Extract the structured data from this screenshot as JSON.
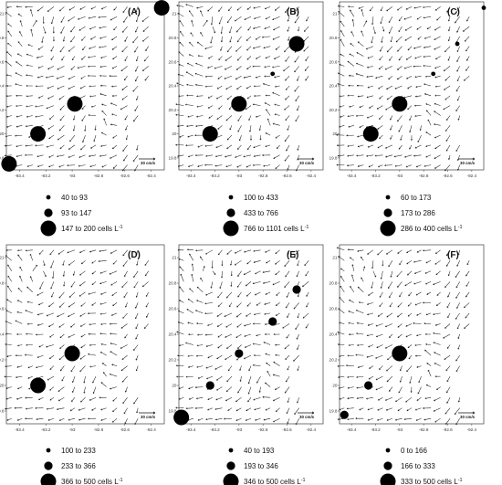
{
  "chart_data": [
    {
      "type": "scatter",
      "panel_label": "(A)",
      "xlim": [
        -93.5,
        -92.3
      ],
      "ylim": [
        19.7,
        21.1
      ],
      "x_ticks": [
        "-93.4",
        "-93.2",
        "-93",
        "-92.8",
        "-92.6",
        "-92.4"
      ],
      "y_ticks": [
        "19.8",
        "20",
        "20.2",
        "20.4",
        "20.6",
        "20.8",
        "21"
      ],
      "current_scale_label": "30 cm/s",
      "legend": [
        {
          "min": "40",
          "max": "93"
        },
        {
          "min": "93",
          "max": "147"
        },
        {
          "min": "147",
          "max": "200",
          "unit": "cells L",
          "unit_exp": "-1"
        }
      ],
      "points": [
        {
          "lon": -92.32,
          "lat": 21.05,
          "class": 3
        },
        {
          "lon": -92.98,
          "lat": 20.25,
          "class": 3
        },
        {
          "lon": -93.26,
          "lat": 20.0,
          "class": 3
        },
        {
          "lon": -93.48,
          "lat": 19.75,
          "class": 3
        }
      ]
    },
    {
      "type": "scatter",
      "panel_label": "(B)",
      "xlim": [
        -93.5,
        -92.3
      ],
      "ylim": [
        19.7,
        21.1
      ],
      "x_ticks": [
        "-93.4",
        "-93.2",
        "-93",
        "-92.8",
        "-92.6",
        "-92.4"
      ],
      "y_ticks": [
        "19.8",
        "20",
        "20.2",
        "20.4",
        "20.6",
        "20.8",
        "21"
      ],
      "current_scale_label": "30 cm/s",
      "legend": [
        {
          "min": "100",
          "max": "433"
        },
        {
          "min": "433",
          "max": "766"
        },
        {
          "min": "766",
          "max": "1101",
          "unit": "cells L",
          "unit_exp": "-1"
        }
      ],
      "points": [
        {
          "lon": -92.52,
          "lat": 20.75,
          "class": 3
        },
        {
          "lon": -92.72,
          "lat": 20.5,
          "class": 1
        },
        {
          "lon": -93.0,
          "lat": 20.25,
          "class": 3
        },
        {
          "lon": -93.24,
          "lat": 20.0,
          "class": 3
        }
      ]
    },
    {
      "type": "scatter",
      "panel_label": "(C)",
      "xlim": [
        -93.5,
        -92.3
      ],
      "ylim": [
        19.7,
        21.1
      ],
      "x_ticks": [
        "-93.4",
        "-93.2",
        "-93",
        "-92.8",
        "-92.6",
        "-92.4"
      ],
      "y_ticks": [
        "19.8",
        "20",
        "20.2",
        "20.4",
        "20.6",
        "20.8",
        "21"
      ],
      "current_scale_label": "30 cm/s",
      "legend": [
        {
          "min": "60",
          "max": "173"
        },
        {
          "min": "173",
          "max": "286"
        },
        {
          "min": "286",
          "max": "400",
          "unit": "cells L",
          "unit_exp": "-1"
        }
      ],
      "points": [
        {
          "lon": -92.3,
          "lat": 21.05,
          "class": 1
        },
        {
          "lon": -92.52,
          "lat": 20.75,
          "class": 1
        },
        {
          "lon": -92.72,
          "lat": 20.5,
          "class": 1
        },
        {
          "lon": -93.0,
          "lat": 20.25,
          "class": 3
        },
        {
          "lon": -93.24,
          "lat": 20.0,
          "class": 3
        }
      ]
    },
    {
      "type": "scatter",
      "panel_label": "(D)",
      "xlim": [
        -93.5,
        -92.3
      ],
      "ylim": [
        19.7,
        21.1
      ],
      "x_ticks": [
        "-93.4",
        "-93.2",
        "-93",
        "-92.8",
        "-92.6",
        "-92.4"
      ],
      "y_ticks": [
        "19.8",
        "20",
        "20.2",
        "20.4",
        "20.6",
        "20.8",
        "21"
      ],
      "current_scale_label": "30 cm/s",
      "legend": [
        {
          "min": "100",
          "max": "233"
        },
        {
          "min": "233",
          "max": "366"
        },
        {
          "min": "366",
          "max": "500",
          "unit": "cells L",
          "unit_exp": "-1"
        }
      ],
      "points": [
        {
          "lon": -93.0,
          "lat": 20.25,
          "class": 3
        },
        {
          "lon": -93.26,
          "lat": 20.0,
          "class": 3
        }
      ]
    },
    {
      "type": "scatter",
      "panel_label": "(E)",
      "xlim": [
        -93.5,
        -92.3
      ],
      "ylim": [
        19.7,
        21.1
      ],
      "x_ticks": [
        "-93.4",
        "-93.2",
        "-93",
        "-92.8",
        "-92.6",
        "-92.4"
      ],
      "y_ticks": [
        "19.8",
        "20",
        "20.2",
        "20.4",
        "20.6",
        "20.8",
        "21"
      ],
      "current_scale_label": "30 cm/s",
      "legend": [
        {
          "min": "40",
          "max": "193"
        },
        {
          "min": "193",
          "max": "346"
        },
        {
          "min": "346",
          "max": "500",
          "unit": "cells L",
          "unit_exp": "-1"
        }
      ],
      "points": [
        {
          "lon": -92.52,
          "lat": 20.75,
          "class": 2
        },
        {
          "lon": -92.72,
          "lat": 20.5,
          "class": 2
        },
        {
          "lon": -93.0,
          "lat": 20.25,
          "class": 2
        },
        {
          "lon": -93.24,
          "lat": 20.0,
          "class": 2
        },
        {
          "lon": -93.48,
          "lat": 19.75,
          "class": 3
        }
      ]
    },
    {
      "type": "scatter",
      "panel_label": "(F)",
      "xlim": [
        -93.5,
        -92.3
      ],
      "ylim": [
        19.7,
        21.1
      ],
      "x_ticks": [
        "-93.4",
        "-93.2",
        "-93",
        "-92.8",
        "-92.6",
        "-92.4"
      ],
      "y_ticks": [
        "19.8",
        "20",
        "20.2",
        "20.4",
        "20.6",
        "20.8",
        "21"
      ],
      "current_scale_label": "30 cm/s",
      "legend": [
        {
          "min": "0",
          "max": "166"
        },
        {
          "min": "166",
          "max": "333"
        },
        {
          "min": "333",
          "max": "500",
          "unit": "cells L",
          "unit_exp": "-1"
        }
      ],
      "points": [
        {
          "lon": -93.0,
          "lat": 20.25,
          "class": 3
        },
        {
          "lon": -93.26,
          "lat": 20.0,
          "class": 2
        },
        {
          "lon": -93.46,
          "lat": 19.77,
          "class": 2
        }
      ]
    }
  ],
  "legend_to": "to"
}
